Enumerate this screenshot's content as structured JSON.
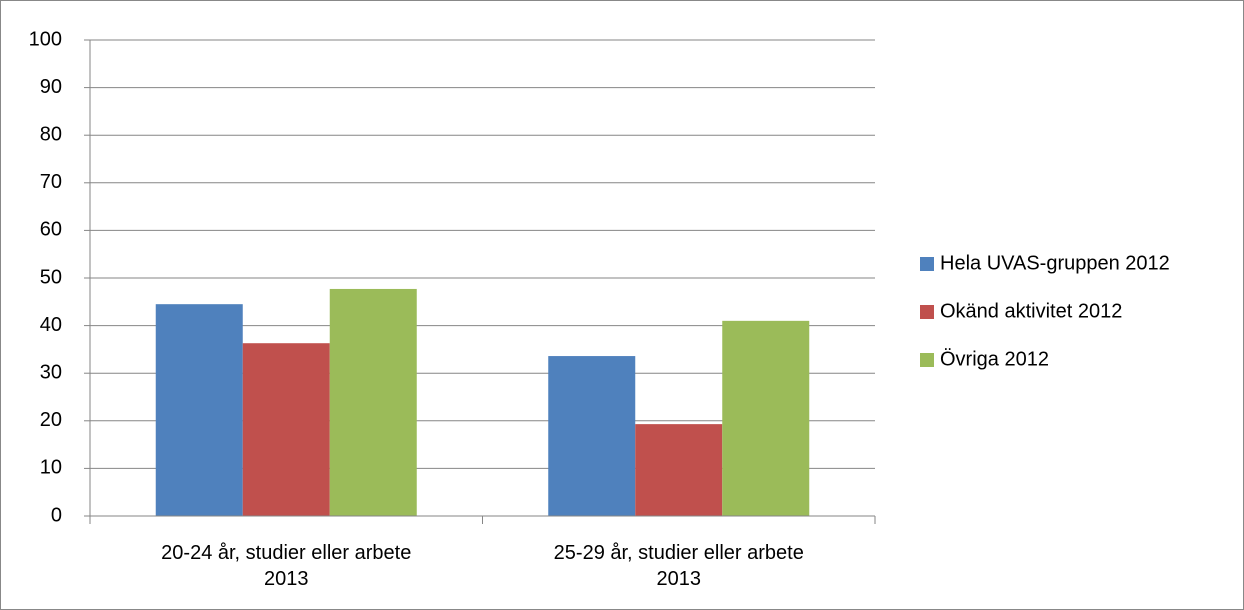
{
  "chart_data": {
    "type": "bar",
    "categories": [
      "20-24 år, studier eller arbete 2013",
      "25-29 år, studier eller arbete 2013"
    ],
    "series": [
      {
        "name": "Hela UVAS-gruppen 2012",
        "color": "#4f81bd",
        "values": [
          44.5,
          33.6
        ]
      },
      {
        "name": "Okänd aktivitet 2012",
        "color": "#c0504d",
        "values": [
          36.3,
          19.3
        ]
      },
      {
        "name": "Övriga 2012",
        "color": "#9bbb59",
        "values": [
          47.7,
          41.0
        ]
      }
    ],
    "ylim": [
      0,
      100
    ],
    "yticks": [
      0,
      10,
      20,
      30,
      40,
      50,
      60,
      70,
      80,
      90,
      100
    ],
    "grid": true,
    "legend": "right"
  }
}
